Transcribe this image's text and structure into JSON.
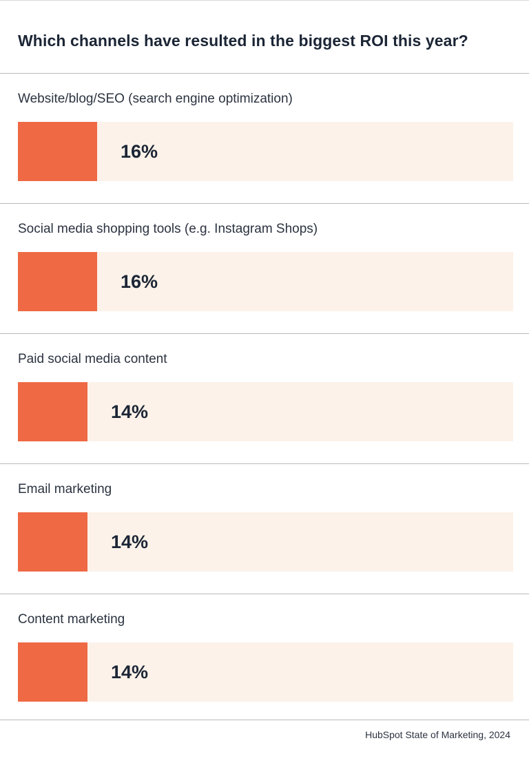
{
  "chart_data": {
    "type": "bar",
    "orientation": "horizontal",
    "title": "Which channels have resulted in the biggest ROI this year?",
    "categories": [
      "Website/blog/SEO (search engine optimization)",
      "Social media shopping tools (e.g. Instagram Shops)",
      "Paid social media content",
      "Email marketing",
      "Content marketing"
    ],
    "values": [
      16,
      16,
      14,
      14,
      14
    ],
    "value_labels": [
      "16%",
      "16%",
      "14%",
      "14%",
      "14%"
    ],
    "unit": "%",
    "xlim": [
      0,
      100
    ],
    "grid": false,
    "legend": "none",
    "colors": {
      "bar": "#ee6944",
      "track": "#fcf2e9",
      "text": "#1b2535"
    }
  },
  "source": "HubSpot State of Marketing, 2024"
}
